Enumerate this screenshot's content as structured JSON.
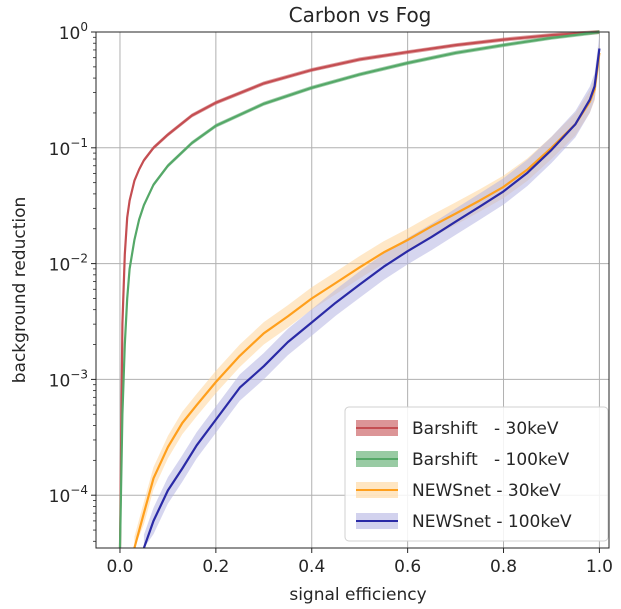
{
  "chart_data": {
    "type": "line",
    "title": "Carbon vs Fog",
    "xlabel": "signal efficiency",
    "ylabel": "background reduction",
    "xlim": [
      -0.05,
      1.02
    ],
    "ylim": [
      3.5e-05,
      1.0
    ],
    "yscale": "log",
    "grid": true,
    "legend_position": "lower right",
    "x_ticks": [
      {
        "value": 0.0,
        "label": "0.0"
      },
      {
        "value": 0.2,
        "label": "0.2"
      },
      {
        "value": 0.4,
        "label": "0.4"
      },
      {
        "value": 0.6,
        "label": "0.6"
      },
      {
        "value": 0.8,
        "label": "0.8"
      },
      {
        "value": 1.0,
        "label": "1.0"
      }
    ],
    "y_ticks": [
      {
        "value": 0.0001,
        "base": "10",
        "exp": "−4"
      },
      {
        "value": 0.001,
        "base": "10",
        "exp": "−3"
      },
      {
        "value": 0.01,
        "base": "10",
        "exp": "−2"
      },
      {
        "value": 0.1,
        "base": "10",
        "exp": "−1"
      },
      {
        "value": 1.0,
        "base": "10",
        "exp": "0"
      }
    ],
    "series": [
      {
        "name": "Barshift   - 30keV",
        "color": "#c44e52",
        "band_color": "#c44e52",
        "band": 0.04,
        "x": [
          0.0,
          0.005,
          0.01,
          0.015,
          0.02,
          0.03,
          0.04,
          0.05,
          0.07,
          0.1,
          0.15,
          0.2,
          0.3,
          0.4,
          0.5,
          0.6,
          0.7,
          0.8,
          0.9,
          1.0
        ],
        "y": [
          3.5e-05,
          0.003,
          0.012,
          0.025,
          0.035,
          0.052,
          0.065,
          0.078,
          0.1,
          0.13,
          0.19,
          0.245,
          0.36,
          0.47,
          0.58,
          0.67,
          0.77,
          0.86,
          0.94,
          1.0
        ]
      },
      {
        "name": "Barshift   - 100keV",
        "color": "#55a868",
        "band_color": "#55a868",
        "band": 0.04,
        "x": [
          0.0,
          0.005,
          0.01,
          0.015,
          0.02,
          0.03,
          0.04,
          0.05,
          0.07,
          0.1,
          0.15,
          0.2,
          0.3,
          0.4,
          0.5,
          0.6,
          0.7,
          0.8,
          0.9,
          1.0
        ],
        "y": [
          3.5e-05,
          0.0005,
          0.002,
          0.005,
          0.009,
          0.016,
          0.024,
          0.032,
          0.048,
          0.07,
          0.11,
          0.155,
          0.24,
          0.33,
          0.43,
          0.54,
          0.66,
          0.77,
          0.89,
          1.0
        ]
      },
      {
        "name": "NEWSnet - 30keV",
        "color": "#ff9f1c",
        "band_color": "#ffd59a",
        "band": 0.25,
        "x": [
          0.03,
          0.05,
          0.07,
          0.1,
          0.13,
          0.16,
          0.2,
          0.25,
          0.3,
          0.35,
          0.4,
          0.45,
          0.5,
          0.55,
          0.6,
          0.65,
          0.7,
          0.75,
          0.8,
          0.85,
          0.9,
          0.95,
          0.98,
          0.99,
          1.0
        ],
        "y": [
          3.5e-05,
          7e-05,
          0.00014,
          0.00026,
          0.00042,
          0.0006,
          0.00095,
          0.0016,
          0.0025,
          0.0035,
          0.005,
          0.0068,
          0.0093,
          0.0125,
          0.016,
          0.021,
          0.027,
          0.035,
          0.046,
          0.065,
          0.1,
          0.16,
          0.25,
          0.32,
          0.66
        ]
      },
      {
        "name": "NEWSnet - 100keV",
        "color": "#2a2aa6",
        "band_color": "#b4b4e2",
        "band": 0.3,
        "x": [
          0.05,
          0.07,
          0.1,
          0.13,
          0.16,
          0.2,
          0.25,
          0.3,
          0.35,
          0.4,
          0.45,
          0.5,
          0.55,
          0.6,
          0.65,
          0.7,
          0.75,
          0.8,
          0.85,
          0.9,
          0.95,
          0.98,
          0.99,
          1.0
        ],
        "y": [
          3.5e-05,
          6e-05,
          0.00011,
          0.00017,
          0.00027,
          0.00045,
          0.00085,
          0.0013,
          0.0021,
          0.0031,
          0.0046,
          0.0066,
          0.0094,
          0.0128,
          0.017,
          0.023,
          0.031,
          0.042,
          0.061,
          0.096,
          0.16,
          0.26,
          0.34,
          0.72
        ]
      }
    ]
  }
}
